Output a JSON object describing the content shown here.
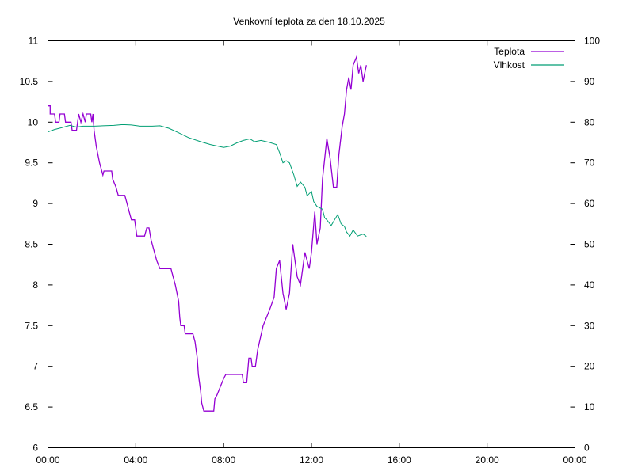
{
  "chart_data": {
    "type": "line",
    "title": "Venkovní teplota za den 18.10.2025",
    "xlabel": "",
    "ylabel": "",
    "y2label": "",
    "grid": false,
    "legend_position": "top-right",
    "x_unit": "hours",
    "xlim": [
      0,
      24
    ],
    "ylim": [
      6,
      11
    ],
    "y2lim": [
      0,
      100
    ],
    "x_ticks": [
      {
        "v": 0,
        "label": "00:00"
      },
      {
        "v": 4,
        "label": "04:00"
      },
      {
        "v": 8,
        "label": "08:00"
      },
      {
        "v": 12,
        "label": "12:00"
      },
      {
        "v": 16,
        "label": "16:00"
      },
      {
        "v": 20,
        "label": "20:00"
      },
      {
        "v": 24,
        "label": "00:00"
      }
    ],
    "y_ticks": [
      {
        "v": 6,
        "label": "6"
      },
      {
        "v": 6.5,
        "label": "6.5"
      },
      {
        "v": 7,
        "label": "7"
      },
      {
        "v": 7.5,
        "label": "7.5"
      },
      {
        "v": 8,
        "label": "8"
      },
      {
        "v": 8.5,
        "label": "8.5"
      },
      {
        "v": 9,
        "label": "9"
      },
      {
        "v": 9.5,
        "label": "9.5"
      },
      {
        "v": 10,
        "label": "10"
      },
      {
        "v": 10.5,
        "label": "10.5"
      },
      {
        "v": 11,
        "label": "11"
      }
    ],
    "y2_ticks": [
      {
        "v": 0,
        "label": "0"
      },
      {
        "v": 10,
        "label": "10"
      },
      {
        "v": 20,
        "label": "20"
      },
      {
        "v": 30,
        "label": "30"
      },
      {
        "v": 40,
        "label": "40"
      },
      {
        "v": 50,
        "label": "50"
      },
      {
        "v": 60,
        "label": "60"
      },
      {
        "v": 70,
        "label": "70"
      },
      {
        "v": 80,
        "label": "80"
      },
      {
        "v": 90,
        "label": "90"
      },
      {
        "v": 100,
        "label": "100"
      }
    ],
    "series": [
      {
        "name": "Teplota",
        "axis": "y",
        "color": "#9400d3",
        "points": [
          [
            0,
            10.2
          ],
          [
            0.1,
            10.2
          ],
          [
            0.1,
            10.1
          ],
          [
            0.3,
            10.1
          ],
          [
            0.35,
            10.0
          ],
          [
            0.5,
            10.0
          ],
          [
            0.55,
            10.1
          ],
          [
            0.75,
            10.1
          ],
          [
            0.8,
            10.0
          ],
          [
            1.05,
            10.0
          ],
          [
            1.1,
            9.9
          ],
          [
            1.3,
            9.9
          ],
          [
            1.35,
            10.0
          ],
          [
            1.4,
            10.1
          ],
          [
            1.5,
            10.0
          ],
          [
            1.6,
            10.1
          ],
          [
            1.7,
            10.0
          ],
          [
            1.75,
            10.1
          ],
          [
            1.95,
            10.1
          ],
          [
            2.0,
            10.0
          ],
          [
            2.05,
            10.1
          ],
          [
            2.1,
            9.9
          ],
          [
            2.2,
            9.7
          ],
          [
            2.35,
            9.5
          ],
          [
            2.5,
            9.35
          ],
          [
            2.55,
            9.4
          ],
          [
            2.9,
            9.4
          ],
          [
            2.95,
            9.3
          ],
          [
            3.1,
            9.2
          ],
          [
            3.2,
            9.1
          ],
          [
            3.5,
            9.1
          ],
          [
            3.6,
            9.0
          ],
          [
            3.7,
            8.9
          ],
          [
            3.8,
            8.8
          ],
          [
            3.95,
            8.8
          ],
          [
            4.05,
            8.6
          ],
          [
            4.4,
            8.6
          ],
          [
            4.5,
            8.7
          ],
          [
            4.6,
            8.7
          ],
          [
            4.7,
            8.55
          ],
          [
            4.85,
            8.4
          ],
          [
            4.95,
            8.3
          ],
          [
            5.1,
            8.2
          ],
          [
            5.6,
            8.2
          ],
          [
            5.7,
            8.1
          ],
          [
            5.8,
            8.0
          ],
          [
            5.95,
            7.8
          ],
          [
            6.0,
            7.6
          ],
          [
            6.05,
            7.5
          ],
          [
            6.2,
            7.5
          ],
          [
            6.25,
            7.4
          ],
          [
            6.6,
            7.4
          ],
          [
            6.7,
            7.3
          ],
          [
            6.8,
            7.1
          ],
          [
            6.85,
            6.9
          ],
          [
            6.95,
            6.7
          ],
          [
            7.0,
            6.55
          ],
          [
            7.1,
            6.45
          ],
          [
            7.55,
            6.45
          ],
          [
            7.6,
            6.6
          ],
          [
            7.7,
            6.65
          ],
          [
            7.85,
            6.75
          ],
          [
            8.0,
            6.85
          ],
          [
            8.1,
            6.9
          ],
          [
            8.85,
            6.9
          ],
          [
            8.9,
            6.8
          ],
          [
            9.05,
            6.8
          ],
          [
            9.15,
            7.1
          ],
          [
            9.25,
            7.1
          ],
          [
            9.3,
            7.0
          ],
          [
            9.45,
            7.0
          ],
          [
            9.55,
            7.2
          ],
          [
            9.8,
            7.5
          ],
          [
            9.95,
            7.6
          ],
          [
            10.1,
            7.7
          ],
          [
            10.3,
            7.85
          ],
          [
            10.4,
            8.2
          ],
          [
            10.55,
            8.3
          ],
          [
            10.7,
            7.9
          ],
          [
            10.85,
            7.7
          ],
          [
            11.0,
            7.9
          ],
          [
            11.15,
            8.5
          ],
          [
            11.35,
            8.1
          ],
          [
            11.5,
            8.0
          ],
          [
            11.7,
            8.4
          ],
          [
            11.9,
            8.2
          ],
          [
            12.0,
            8.4
          ],
          [
            12.15,
            8.9
          ],
          [
            12.25,
            8.5
          ],
          [
            12.4,
            8.7
          ],
          [
            12.5,
            9.3
          ],
          [
            12.7,
            9.8
          ],
          [
            12.85,
            9.55
          ],
          [
            13.0,
            9.2
          ],
          [
            13.15,
            9.2
          ],
          [
            13.25,
            9.6
          ],
          [
            13.4,
            9.95
          ],
          [
            13.5,
            10.1
          ],
          [
            13.6,
            10.4
          ],
          [
            13.7,
            10.55
          ],
          [
            13.8,
            10.4
          ],
          [
            13.9,
            10.7
          ],
          [
            14.05,
            10.8
          ],
          [
            14.15,
            10.6
          ],
          [
            14.25,
            10.7
          ],
          [
            14.35,
            10.5
          ],
          [
            14.5,
            10.7
          ]
        ]
      },
      {
        "name": "Vlhkost",
        "axis": "y2",
        "color": "#009e73",
        "points": [
          [
            0,
            77.6
          ],
          [
            0.3,
            78.2
          ],
          [
            0.6,
            78.6
          ],
          [
            1.0,
            79.2
          ],
          [
            1.3,
            78.8
          ],
          [
            1.6,
            79.0
          ],
          [
            2.1,
            79.0
          ],
          [
            2.5,
            79.1
          ],
          [
            3.0,
            79.2
          ],
          [
            3.4,
            79.4
          ],
          [
            3.8,
            79.3
          ],
          [
            4.2,
            79.0
          ],
          [
            4.75,
            79.0
          ],
          [
            5.1,
            79.1
          ],
          [
            5.5,
            78.5
          ],
          [
            5.9,
            77.5
          ],
          [
            6.4,
            76.2
          ],
          [
            6.9,
            75.3
          ],
          [
            7.4,
            74.5
          ],
          [
            8.0,
            73.8
          ],
          [
            8.3,
            74.1
          ],
          [
            8.6,
            74.9
          ],
          [
            8.9,
            75.5
          ],
          [
            9.2,
            75.9
          ],
          [
            9.4,
            75.2
          ],
          [
            9.7,
            75.5
          ],
          [
            10.1,
            75.0
          ],
          [
            10.4,
            74.5
          ],
          [
            10.55,
            72.5
          ],
          [
            10.7,
            70.0
          ],
          [
            10.85,
            70.5
          ],
          [
            11.0,
            70.0
          ],
          [
            11.2,
            67.0
          ],
          [
            11.35,
            64.2
          ],
          [
            11.5,
            65.3
          ],
          [
            11.7,
            64.0
          ],
          [
            11.8,
            61.9
          ],
          [
            12.0,
            63.0
          ],
          [
            12.1,
            60.5
          ],
          [
            12.25,
            59.3
          ],
          [
            12.5,
            58.6
          ],
          [
            12.6,
            56.5
          ],
          [
            12.7,
            56.0
          ],
          [
            12.9,
            54.6
          ],
          [
            13.05,
            56.0
          ],
          [
            13.2,
            57.3
          ],
          [
            13.35,
            55.0
          ],
          [
            13.5,
            54.4
          ],
          [
            13.6,
            53.0
          ],
          [
            13.75,
            52.0
          ],
          [
            13.9,
            53.5
          ],
          [
            14.1,
            52.0
          ],
          [
            14.35,
            52.5
          ],
          [
            14.5,
            51.9
          ]
        ]
      }
    ]
  }
}
